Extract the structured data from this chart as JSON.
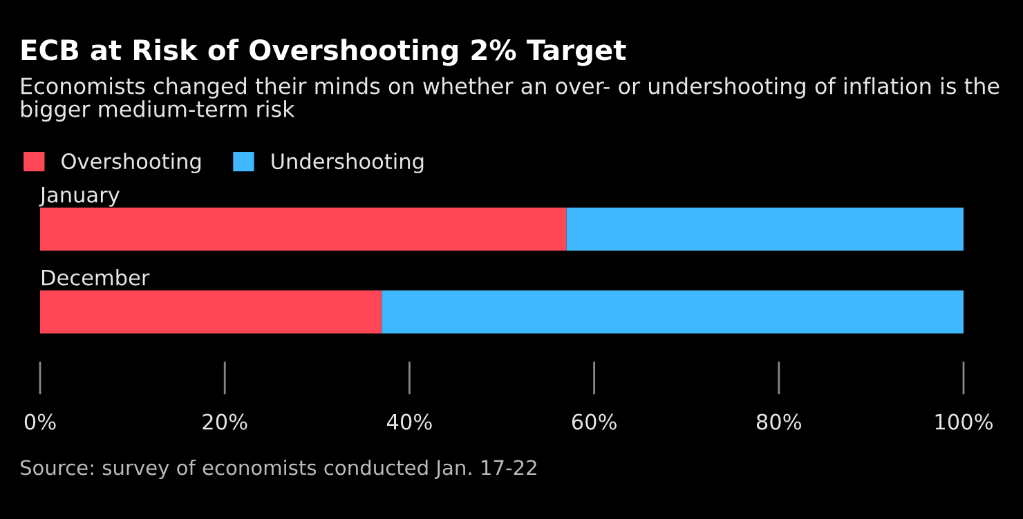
{
  "chart_data": {
    "type": "bar",
    "orientation": "horizontal",
    "stacked": true,
    "title": "ECB at Risk of Overshooting 2% Target",
    "subtitle": "Economists changed their minds on whether an over- or undershooting of inflation is the bigger medium-term risk",
    "categories": [
      "January",
      "December"
    ],
    "series": [
      {
        "name": "Overshooting",
        "color": "#ff4757",
        "values": [
          57,
          37
        ]
      },
      {
        "name": "Undershooting",
        "color": "#40b8ff",
        "values": [
          43,
          63
        ]
      }
    ],
    "xlim": [
      0,
      100
    ],
    "xticks": [
      {
        "value": 0,
        "label": "0%"
      },
      {
        "value": 20,
        "label": "20%"
      },
      {
        "value": 40,
        "label": "40%"
      },
      {
        "value": 60,
        "label": "60%"
      },
      {
        "value": 80,
        "label": "80%"
      },
      {
        "value": 100,
        "label": "100%"
      }
    ],
    "grid": false,
    "legend": "top left",
    "annotations": [
      "Source: survey of economists conducted Jan. 17-22"
    ]
  }
}
